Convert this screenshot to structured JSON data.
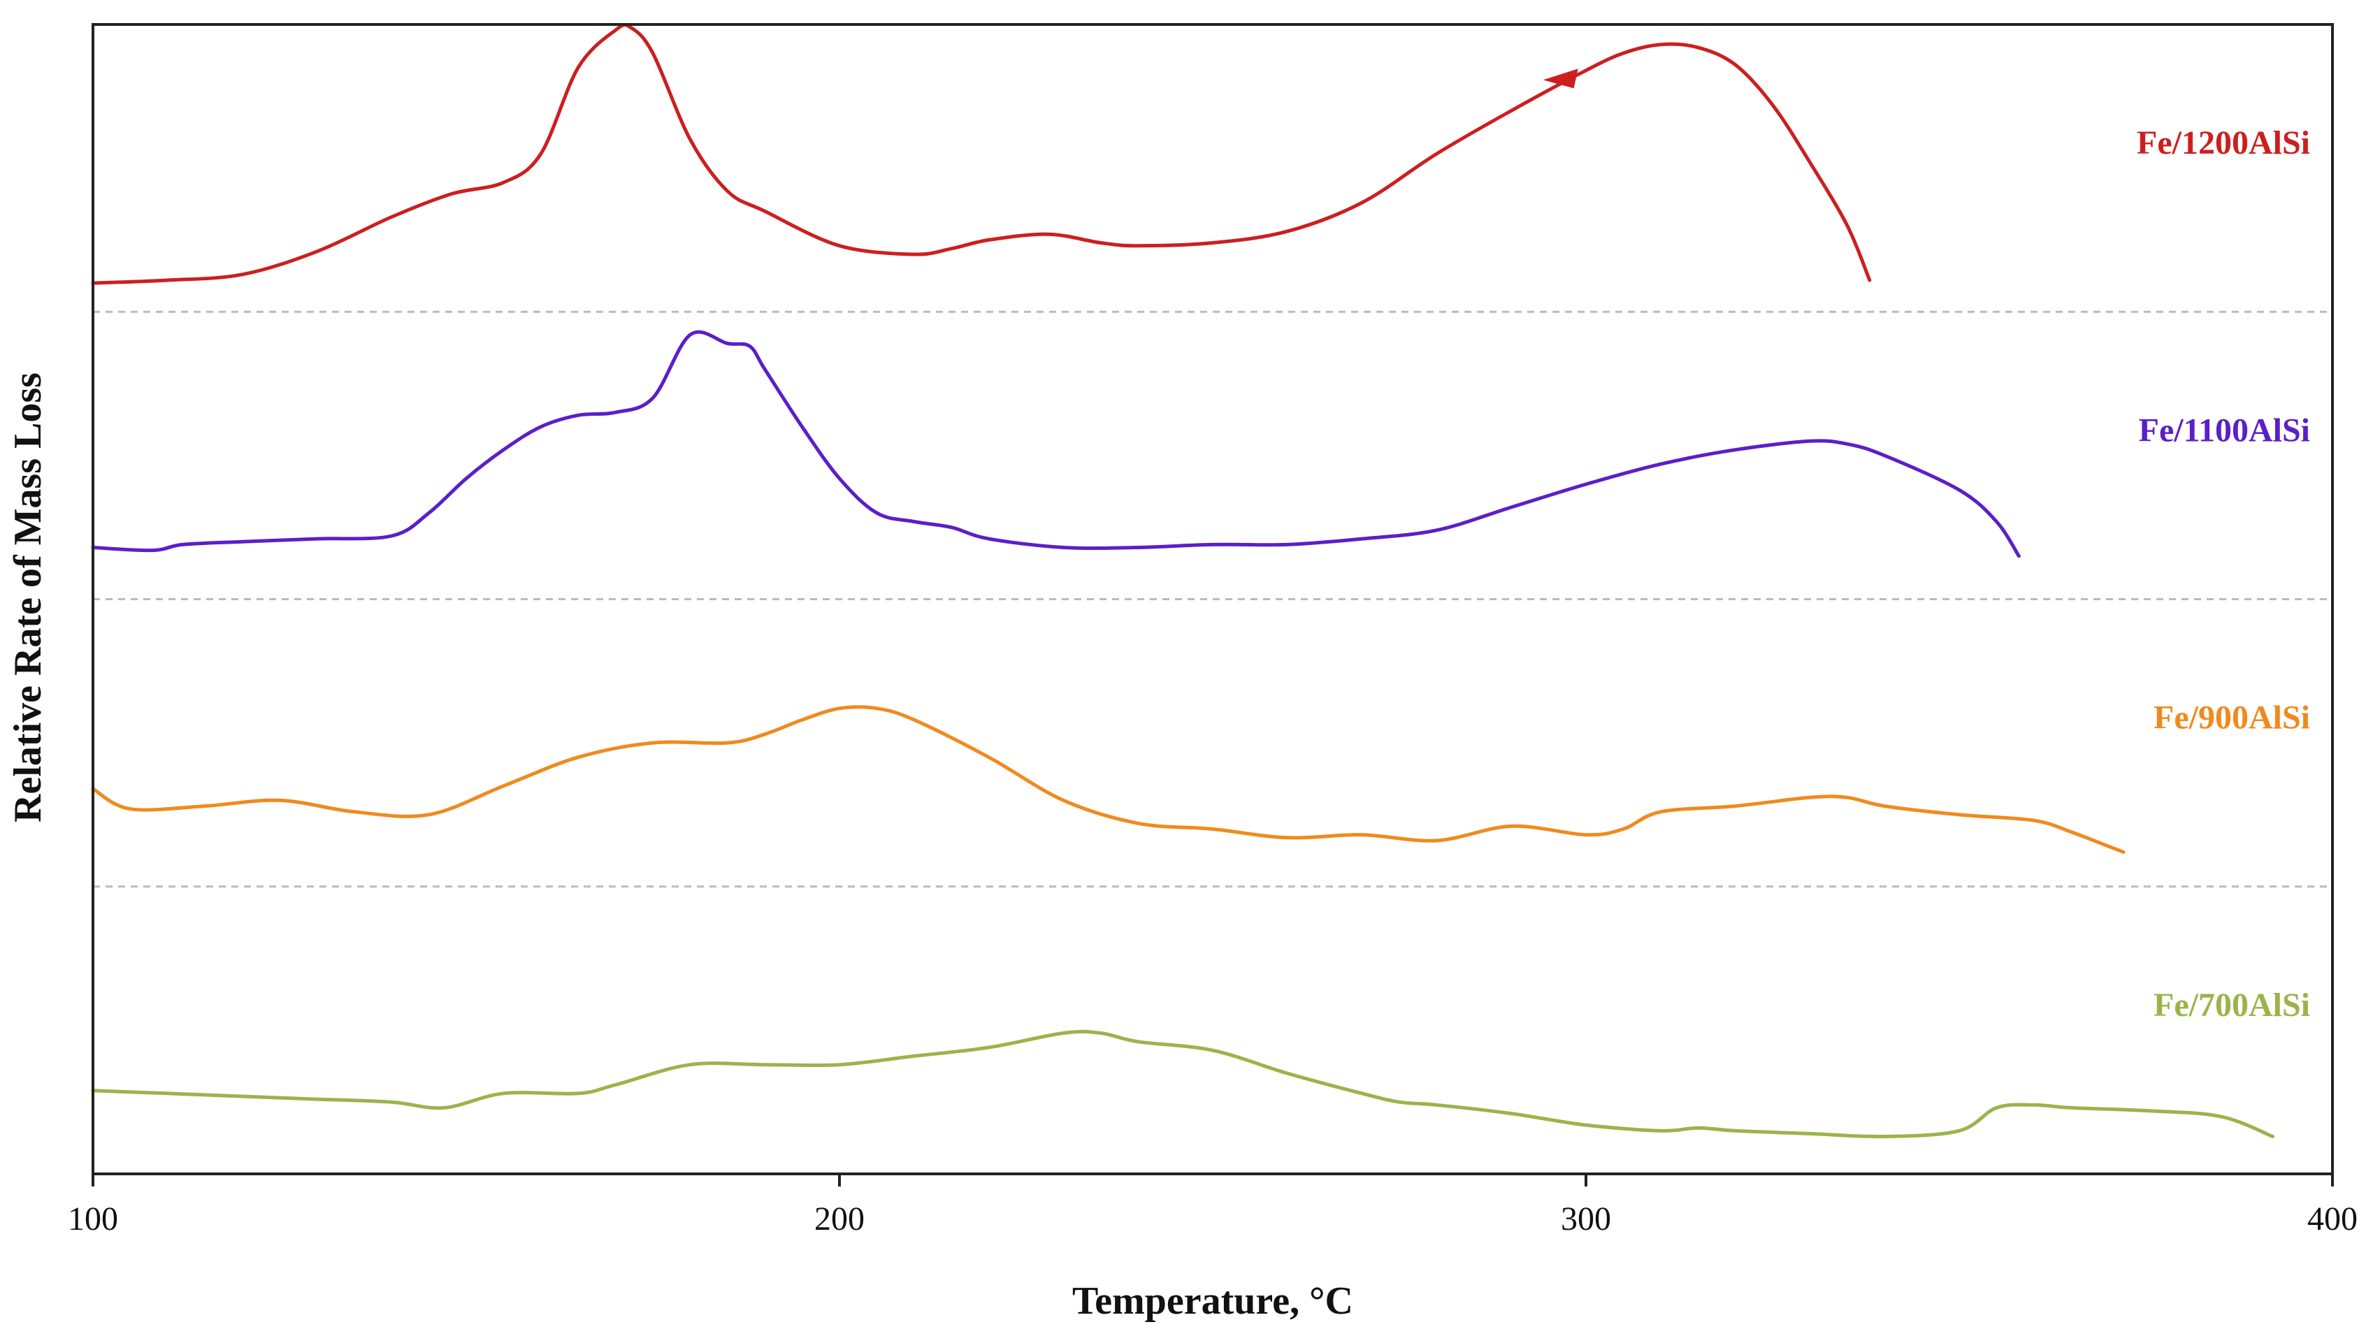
{
  "chart_data": {
    "type": "line",
    "title": "",
    "xlabel": "Temperature, °C",
    "ylabel": "Relative Rate of Mass Loss",
    "xlim": [
      100,
      400
    ],
    "xticks": [
      "100",
      "200",
      "300",
      "400"
    ],
    "ylim": [
      0,
      4
    ],
    "grid": false,
    "separators": [
      1,
      2,
      3
    ],
    "series": [
      {
        "name": "Fe/1200AlSi",
        "color": "#cc1f1f",
        "offset": 3,
        "x": [
          100,
          110,
          120,
          130,
          140,
          148,
          155,
          160,
          165,
          170,
          172,
          175,
          180,
          185,
          190,
          200,
          210,
          215,
          220,
          228,
          235,
          240,
          250,
          260,
          270,
          280,
          290,
          300,
          305,
          310,
          315,
          320,
          325,
          330,
          335,
          338
        ],
        "y": [
          0.1,
          0.11,
          0.13,
          0.21,
          0.33,
          0.41,
          0.45,
          0.55,
          0.85,
          0.98,
          0.99,
          0.9,
          0.6,
          0.42,
          0.35,
          0.23,
          0.2,
          0.22,
          0.25,
          0.27,
          0.24,
          0.23,
          0.24,
          0.28,
          0.38,
          0.55,
          0.7,
          0.84,
          0.9,
          0.93,
          0.92,
          0.86,
          0.72,
          0.52,
          0.3,
          0.11
        ]
      },
      {
        "name": "Fe/1100AlSi",
        "color": "#5b1fc8",
        "offset": 2,
        "x": [
          100,
          108,
          112,
          120,
          130,
          140,
          145,
          150,
          155,
          160,
          165,
          170,
          175,
          180,
          185,
          188,
          190,
          195,
          200,
          205,
          210,
          215,
          220,
          230,
          240,
          250,
          260,
          270,
          280,
          290,
          300,
          310,
          320,
          330,
          335,
          340,
          350,
          355,
          358
        ],
        "y": [
          0.18,
          0.17,
          0.19,
          0.2,
          0.21,
          0.22,
          0.3,
          0.42,
          0.52,
          0.6,
          0.64,
          0.65,
          0.7,
          0.92,
          0.89,
          0.88,
          0.8,
          0.6,
          0.42,
          0.3,
          0.27,
          0.25,
          0.21,
          0.18,
          0.18,
          0.19,
          0.19,
          0.21,
          0.24,
          0.32,
          0.4,
          0.47,
          0.52,
          0.55,
          0.54,
          0.5,
          0.38,
          0.27,
          0.15
        ]
      },
      {
        "name": "Fe/900AlSi",
        "color": "#f08a1e",
        "offset": 1,
        "x": [
          100,
          105,
          115,
          125,
          135,
          145,
          155,
          165,
          175,
          185,
          190,
          195,
          200,
          205,
          210,
          220,
          230,
          240,
          250,
          260,
          270,
          280,
          290,
          300,
          305,
          310,
          320,
          330,
          335,
          340,
          350,
          360,
          365,
          370,
          372
        ],
        "y": [
          0.34,
          0.27,
          0.28,
          0.3,
          0.26,
          0.25,
          0.35,
          0.45,
          0.5,
          0.5,
          0.53,
          0.58,
          0.62,
          0.62,
          0.58,
          0.45,
          0.3,
          0.22,
          0.2,
          0.17,
          0.18,
          0.16,
          0.21,
          0.18,
          0.2,
          0.26,
          0.28,
          0.31,
          0.31,
          0.28,
          0.25,
          0.23,
          0.19,
          0.14,
          0.12
        ]
      },
      {
        "name": "Fe/700AlSi",
        "color": "#9ab44a",
        "offset": 0,
        "x": [
          100,
          110,
          120,
          130,
          140,
          147,
          155,
          165,
          170,
          180,
          190,
          200,
          210,
          220,
          230,
          235,
          240,
          250,
          260,
          270,
          275,
          280,
          290,
          300,
          310,
          315,
          320,
          330,
          340,
          350,
          355,
          360,
          365,
          375,
          385,
          392
        ],
        "y": [
          0.29,
          0.28,
          0.27,
          0.26,
          0.25,
          0.23,
          0.28,
          0.28,
          0.31,
          0.38,
          0.38,
          0.38,
          0.41,
          0.44,
          0.49,
          0.49,
          0.46,
          0.43,
          0.35,
          0.28,
          0.25,
          0.24,
          0.21,
          0.17,
          0.15,
          0.16,
          0.15,
          0.14,
          0.13,
          0.15,
          0.23,
          0.24,
          0.23,
          0.22,
          0.2,
          0.13
        ]
      }
    ],
    "annotations": [
      {
        "type": "arrow",
        "series": "Fe/1200AlSi",
        "x": 298,
        "direction": "left"
      }
    ]
  }
}
